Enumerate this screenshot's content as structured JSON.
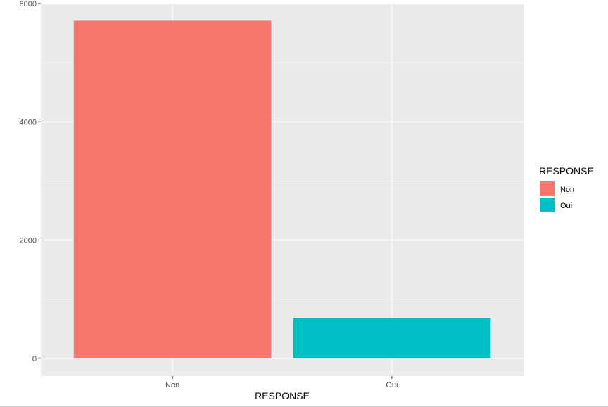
{
  "chart_data": {
    "type": "bar",
    "title": "",
    "xlabel": "RESPONSE",
    "ylabel": "",
    "categories": [
      "Non",
      "Oui"
    ],
    "values": [
      5710,
      680
    ],
    "ylim": [
      -300,
      6000
    ],
    "yticks": [
      0,
      2000,
      4000,
      6000
    ],
    "ytick_labels": [
      "0",
      "2000",
      "4000",
      "6000"
    ],
    "grid": true,
    "legend": {
      "title": "RESPONSE",
      "placement": "right",
      "entries": [
        "Non",
        "Oui"
      ]
    },
    "colors": {
      "Non": "#F8766D",
      "Oui": "#00BFC4",
      "panel": "#EBEBEB",
      "grid_major": "#FFFFFF"
    }
  }
}
